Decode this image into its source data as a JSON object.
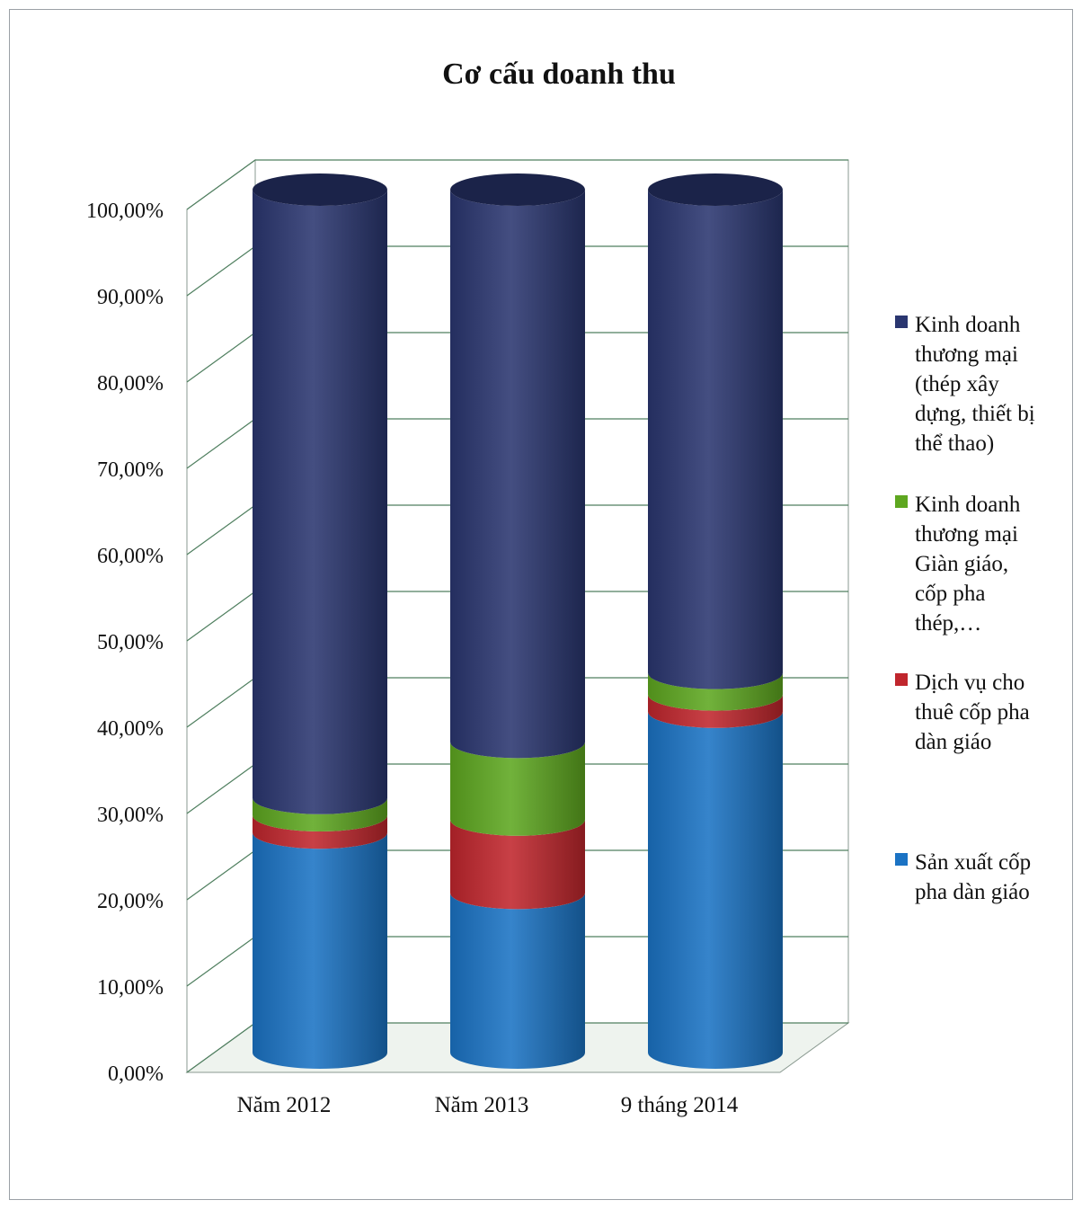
{
  "chart_data": {
    "type": "bar",
    "stacked": true,
    "title": "Cơ cấu doanh thu",
    "categories": [
      "Năm 2012",
      "Năm 2013",
      "9 tháng 2014"
    ],
    "yticks": [
      "0,00%",
      "10,00%",
      "20,00%",
      "30,00%",
      "40,00%",
      "50,00%",
      "60,00%",
      "70,00%",
      "80,00%",
      "90,00%",
      "100,00%"
    ],
    "ylim": [
      0,
      100
    ],
    "grid": true,
    "legend_position": "right",
    "series": [
      {
        "name": "Sản xuất cốp pha dàn giáo",
        "color": "#1b73c4",
        "values": [
          25.5,
          18.5,
          39.5
        ]
      },
      {
        "name": "Dịch vụ cho thuê cốp pha dàn giáo",
        "color": "#c0262d",
        "values": [
          2.0,
          8.5,
          2.0
        ]
      },
      {
        "name": "Kinh doanh thương mại Giàn giáo, cốp pha thép,…",
        "color": "#5ea720",
        "values": [
          2.0,
          9.0,
          2.5
        ]
      },
      {
        "name": "Kinh doanh thương mại (thép xây dựng, thiết bị thể thao)",
        "color": "#2a3670",
        "values": [
          70.5,
          64.0,
          56.0
        ]
      }
    ]
  },
  "legend": [
    {
      "lines": [
        "Kinh doanh",
        "thương mại",
        "(thép xây",
        "dựng, thiết bị",
        "thể thao)"
      ],
      "color": "#2a3670"
    },
    {
      "lines": [
        "Kinh doanh",
        "thương mại",
        "Giàn giáo,",
        "cốp pha",
        "thép,…"
      ],
      "color": "#5ea720"
    },
    {
      "lines": [
        "Dịch vụ cho",
        "thuê cốp pha",
        "dàn giáo"
      ],
      "color": "#c0262d"
    },
    {
      "lines": [
        "Sản xuất cốp",
        "pha dàn giáo"
      ],
      "color": "#1b73c4"
    }
  ]
}
